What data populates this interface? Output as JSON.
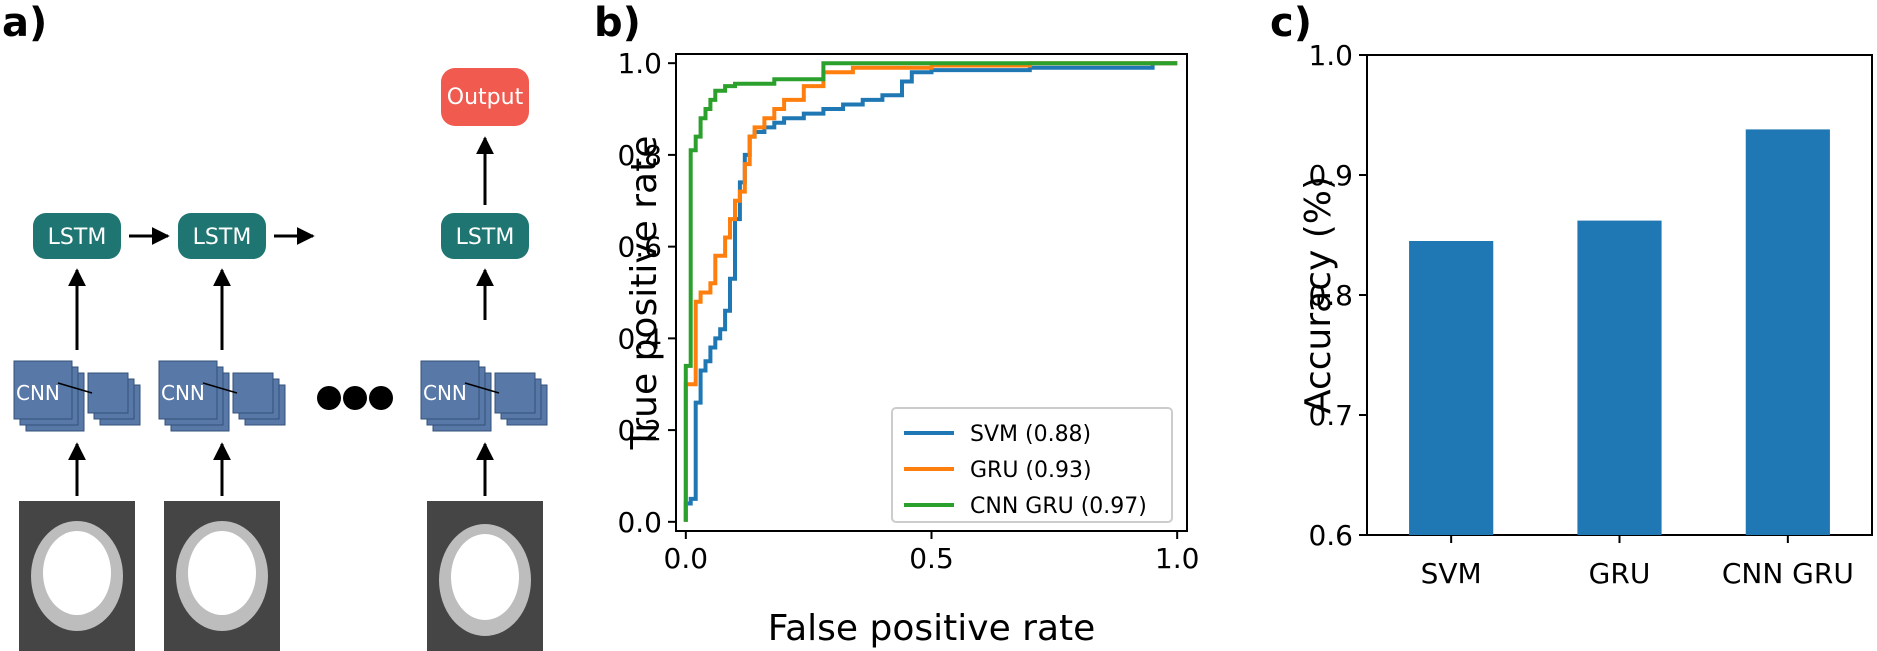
{
  "panels": {
    "a": "a)",
    "b": "b)",
    "c": "c)"
  },
  "diagram": {
    "output_label": "Output",
    "lstm_label": "LSTM",
    "cnn_label": "CNN",
    "colors": {
      "lstm": "#1e7571",
      "output": "#f15a4f",
      "cnn": "#5878a7",
      "image_bg": "#454545",
      "ring": "#bdbdbd"
    }
  },
  "chart_data": [
    {
      "type": "line",
      "xlabel": "False positive rate",
      "ylabel": "True positive rate",
      "xlim": [
        -0.02,
        1.02
      ],
      "ylim": [
        -0.02,
        1.02
      ],
      "xticks": [
        "0.0",
        "0.5",
        "1.0"
      ],
      "yticks": [
        "0.0",
        "0.2",
        "0.4",
        "0.6",
        "0.8",
        "1.0"
      ],
      "legend_position": "bottom-right",
      "series": [
        {
          "name": "SVM (0.88)",
          "color": "#1f77b4",
          "x": [
            0.0,
            0.0,
            0.01,
            0.01,
            0.02,
            0.02,
            0.03,
            0.03,
            0.04,
            0.04,
            0.05,
            0.05,
            0.06,
            0.06,
            0.07,
            0.07,
            0.08,
            0.08,
            0.09,
            0.09,
            0.1,
            0.1,
            0.11,
            0.11,
            0.12,
            0.12,
            0.13,
            0.13,
            0.14,
            0.14,
            0.16,
            0.16,
            0.18,
            0.18,
            0.2,
            0.2,
            0.24,
            0.24,
            0.28,
            0.28,
            0.32,
            0.32,
            0.36,
            0.36,
            0.4,
            0.4,
            0.44,
            0.44,
            0.46,
            0.46,
            0.5,
            0.5,
            0.7,
            0.7,
            0.95,
            0.95,
            1.0
          ],
          "y": [
            0.0,
            0.04,
            0.04,
            0.05,
            0.05,
            0.26,
            0.26,
            0.33,
            0.33,
            0.35,
            0.35,
            0.38,
            0.38,
            0.4,
            0.4,
            0.42,
            0.42,
            0.46,
            0.46,
            0.53,
            0.53,
            0.66,
            0.66,
            0.74,
            0.74,
            0.8,
            0.8,
            0.84,
            0.84,
            0.85,
            0.85,
            0.86,
            0.86,
            0.87,
            0.87,
            0.88,
            0.88,
            0.89,
            0.89,
            0.9,
            0.9,
            0.91,
            0.91,
            0.92,
            0.92,
            0.93,
            0.93,
            0.96,
            0.96,
            0.98,
            0.98,
            0.985,
            0.985,
            0.99,
            0.99,
            1.0,
            1.0
          ]
        },
        {
          "name": "GRU (0.93)",
          "color": "#ff7f0e",
          "x": [
            0.0,
            0.0,
            0.02,
            0.02,
            0.03,
            0.03,
            0.05,
            0.05,
            0.06,
            0.06,
            0.08,
            0.08,
            0.09,
            0.09,
            0.1,
            0.1,
            0.11,
            0.11,
            0.12,
            0.12,
            0.13,
            0.13,
            0.14,
            0.14,
            0.16,
            0.16,
            0.18,
            0.18,
            0.2,
            0.2,
            0.24,
            0.24,
            0.28,
            0.28,
            0.34,
            0.34,
            0.5,
            0.5,
            0.7,
            0.7,
            1.0
          ],
          "y": [
            0.0,
            0.3,
            0.3,
            0.48,
            0.48,
            0.5,
            0.5,
            0.52,
            0.52,
            0.58,
            0.58,
            0.62,
            0.62,
            0.66,
            0.66,
            0.7,
            0.7,
            0.72,
            0.72,
            0.78,
            0.78,
            0.84,
            0.84,
            0.86,
            0.86,
            0.88,
            0.88,
            0.9,
            0.9,
            0.92,
            0.92,
            0.95,
            0.95,
            0.98,
            0.98,
            0.99,
            0.99,
            0.995,
            0.995,
            1.0,
            1.0
          ]
        },
        {
          "name": "CNN GRU (0.97)",
          "color": "#2ca02c",
          "x": [
            0.0,
            0.0,
            0.01,
            0.01,
            0.02,
            0.02,
            0.03,
            0.03,
            0.04,
            0.04,
            0.05,
            0.05,
            0.06,
            0.06,
            0.08,
            0.08,
            0.1,
            0.1,
            0.18,
            0.18,
            0.28,
            0.28,
            1.0
          ],
          "y": [
            0.0,
            0.34,
            0.34,
            0.81,
            0.81,
            0.84,
            0.84,
            0.88,
            0.88,
            0.9,
            0.9,
            0.92,
            0.92,
            0.94,
            0.94,
            0.95,
            0.95,
            0.955,
            0.955,
            0.965,
            0.965,
            1.0,
            1.0
          ]
        }
      ]
    },
    {
      "type": "bar",
      "categories": [
        "SVM",
        "GRU",
        "CNN GRU"
      ],
      "values": [
        0.845,
        0.862,
        0.938
      ],
      "ylabel": "Accuracy (%)",
      "ylim": [
        0.6,
        1.0
      ],
      "yticks": [
        "0.6",
        "0.7",
        "0.8",
        "0.9",
        "1.0"
      ],
      "color": "#1f77b4"
    }
  ]
}
